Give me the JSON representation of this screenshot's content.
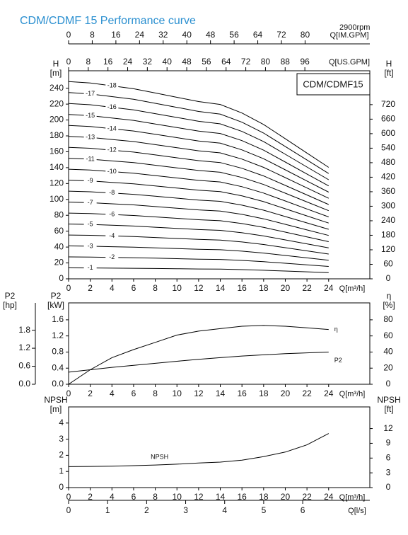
{
  "chart_data": [
    {
      "type": "line",
      "title": "CDM/CDMF 15 Performance curve",
      "subtitle": "2900rpm",
      "model": "CDM/CDMF15",
      "x": [
        0,
        2,
        4,
        6,
        8,
        10,
        12,
        14,
        16,
        18,
        20,
        22,
        24
      ],
      "xlim": [
        0,
        27.8
      ],
      "xticks": [
        0,
        2,
        4,
        6,
        8,
        10,
        12,
        14,
        16,
        18,
        20,
        22,
        24
      ],
      "xlabel": "Q[m³/h]",
      "ylabel": [
        "H",
        "[m]"
      ],
      "ylim": [
        0,
        262
      ],
      "yticks": [
        0,
        20,
        40,
        60,
        80,
        100,
        120,
        140,
        160,
        180,
        200,
        220,
        240
      ],
      "y2label": [
        "H",
        "[ft]"
      ],
      "y2lim": [
        0,
        860
      ],
      "y2ticks": [
        0,
        60,
        120,
        180,
        240,
        300,
        360,
        420,
        480,
        540,
        600,
        660,
        720
      ],
      "top_axes": [
        {
          "label": "Q[IM.GPM]",
          "lim": [
            0,
            101.9
          ],
          "ticks": [
            0,
            8,
            16,
            24,
            32,
            40,
            48,
            56,
            64,
            72,
            80
          ]
        },
        {
          "label": "Q[US.GPM]",
          "lim": [
            0,
            122.4
          ],
          "ticks": [
            0,
            8,
            16,
            24,
            32,
            40,
            48,
            56,
            64,
            72,
            80,
            88,
            96
          ]
        }
      ],
      "series": [
        {
          "name": "-1",
          "color": "#000",
          "values": [
            13.8,
            13.7,
            13.5,
            13.3,
            13.0,
            12.7,
            12.4,
            12.2,
            11.6,
            10.8,
            9.8,
            8.8,
            7.8
          ]
        },
        {
          "name": "-2",
          "color": "#000",
          "values": [
            27.6,
            27.4,
            27,
            26.6,
            26,
            25.4,
            24.8,
            24.4,
            23.2,
            21.6,
            19.6,
            17.6,
            15.6
          ]
        },
        {
          "name": "-3",
          "color": "#000",
          "values": [
            41.4,
            41.1,
            40.5,
            39.9,
            39,
            38.1,
            37.2,
            36.6,
            34.8,
            32.4,
            29.4,
            26.4,
            23.4
          ]
        },
        {
          "name": "-4",
          "color": "#000",
          "values": [
            55.2,
            54.8,
            54,
            53.2,
            52,
            50.8,
            49.6,
            48.8,
            46.4,
            43.2,
            39.2,
            35.2,
            31.2
          ]
        },
        {
          "name": "-5",
          "color": "#000",
          "values": [
            69,
            68.5,
            67.5,
            66.5,
            65,
            63.5,
            62,
            61,
            58,
            54,
            49,
            44,
            39
          ]
        },
        {
          "name": "-6",
          "color": "#000",
          "values": [
            82.8,
            82.2,
            81,
            79.8,
            78,
            76.2,
            74.4,
            73.2,
            69.6,
            64.8,
            58.8,
            52.8,
            46.8
          ]
        },
        {
          "name": "-7",
          "color": "#000",
          "values": [
            96.6,
            95.9,
            94.5,
            93.1,
            91,
            88.9,
            86.8,
            85.4,
            81.2,
            75.6,
            68.6,
            61.6,
            54.6
          ]
        },
        {
          "name": "-8",
          "color": "#000",
          "values": [
            110.4,
            109.6,
            108,
            106.4,
            104,
            101.6,
            99.2,
            97.6,
            92.8,
            86.4,
            78.4,
            70.4,
            62.4
          ]
        },
        {
          "name": "-9",
          "color": "#000",
          "values": [
            124.2,
            123.3,
            121.5,
            119.7,
            117,
            114.3,
            111.6,
            109.8,
            104.4,
            97.2,
            88.2,
            79.2,
            70.2
          ]
        },
        {
          "name": "-10",
          "color": "#000",
          "values": [
            138,
            137,
            135,
            133,
            130,
            127,
            124,
            122,
            116,
            108,
            98,
            88,
            78
          ]
        },
        {
          "name": "-11",
          "color": "#000",
          "values": [
            151.8,
            150.7,
            148.5,
            146.3,
            143,
            139.7,
            136.4,
            134.2,
            127.6,
            118.8,
            107.8,
            96.8,
            85.8
          ]
        },
        {
          "name": "-12",
          "color": "#000",
          "values": [
            165.6,
            164.4,
            162,
            159.6,
            156,
            152.4,
            148.8,
            146.4,
            139.2,
            129.6,
            117.6,
            105.6,
            93.6
          ]
        },
        {
          "name": "-13",
          "color": "#000",
          "values": [
            179.4,
            178.1,
            175.5,
            172.9,
            169,
            165.1,
            161.2,
            158.6,
            150.8,
            140.4,
            127.4,
            114.4,
            101.4
          ]
        },
        {
          "name": "-14",
          "color": "#000",
          "values": [
            193.2,
            191.8,
            189,
            186.2,
            182,
            177.8,
            173.6,
            170.8,
            162.4,
            151.2,
            137.2,
            123.2,
            109.2
          ]
        },
        {
          "name": "-15",
          "color": "#000",
          "values": [
            207,
            205.5,
            202.5,
            199.5,
            195,
            190.5,
            186,
            183,
            174,
            162,
            147,
            132,
            117
          ]
        },
        {
          "name": "-16",
          "color": "#000",
          "values": [
            220.8,
            219.2,
            216,
            212.8,
            208,
            203.2,
            198.4,
            195.2,
            185.6,
            172.8,
            156.8,
            140.8,
            124.8
          ]
        },
        {
          "name": "-17",
          "color": "#000",
          "values": [
            234.6,
            232.9,
            229.5,
            226.1,
            221,
            215.9,
            210.8,
            207.4,
            197.2,
            183.6,
            166.6,
            149.6,
            132.6
          ]
        },
        {
          "name": "-18",
          "color": "#000",
          "values": [
            248.4,
            246.6,
            243,
            239.4,
            234,
            228.6,
            223.2,
            219.6,
            208.8,
            194.4,
            176.4,
            158.4,
            140.4
          ]
        }
      ]
    },
    {
      "type": "line",
      "x": [
        0,
        2,
        4,
        6,
        8,
        10,
        12,
        14,
        16,
        18,
        20,
        22,
        24
      ],
      "xlim": [
        0,
        27.8
      ],
      "xticks": [
        0,
        2,
        4,
        6,
        8,
        10,
        12,
        14,
        16,
        18,
        20,
        22,
        24
      ],
      "xlabel": "Q[m³/h]",
      "ylabel": [
        "P2",
        "[kW]"
      ],
      "ylim": [
        0,
        2.02
      ],
      "yticks": [
        {
          "value": 0,
          "label": "0.0"
        },
        0.4,
        0.8,
        1.2,
        1.6
      ],
      "y2label": [
        "η",
        "[%]"
      ],
      "y2lim": [
        0,
        101
      ],
      "y2ticks": [
        0,
        20,
        40,
        60,
        80
      ],
      "y3label": [
        "P2",
        "[hp]"
      ],
      "y3lim": [
        0,
        2.71
      ],
      "y3ticks": [
        {
          "value": 0,
          "label": "0.0"
        },
        0.6,
        1.2,
        1.8
      ],
      "series": [
        {
          "name": "η",
          "color": "#000",
          "axis": "y2",
          "values": [
            0,
            18,
            33,
            43,
            52,
            61,
            66,
            69,
            72,
            73,
            72,
            70,
            68
          ]
        },
        {
          "name": "P2",
          "color": "#000",
          "values": [
            0.3,
            0.36,
            0.42,
            0.47,
            0.52,
            0.57,
            0.62,
            0.66,
            0.7,
            0.73,
            0.76,
            0.78,
            0.8
          ]
        }
      ]
    },
    {
      "type": "line",
      "x": [
        0,
        2,
        4,
        6,
        8,
        10,
        12,
        14,
        16,
        18,
        20,
        22,
        24
      ],
      "xlim": [
        0,
        27.8
      ],
      "xticks": [
        0,
        2,
        4,
        6,
        8,
        10,
        12,
        14,
        16,
        18,
        20,
        22,
        24
      ],
      "xlabel": "Q[m³/h]",
      "ylabel": [
        "NPSH",
        "[m]"
      ],
      "ylim": [
        0,
        5
      ],
      "yticks": [
        0,
        1,
        2,
        3,
        4
      ],
      "y2label": [
        "NPSH",
        "[ft]"
      ],
      "y2lim": [
        0,
        16.4
      ],
      "y2ticks": [
        0,
        3,
        6,
        9,
        12
      ],
      "bottom_axes": [
        {
          "label": "Q[l/s]",
          "lim": [
            0,
            7.72
          ],
          "ticks": [
            0,
            1,
            2,
            3,
            4,
            5,
            6
          ]
        }
      ],
      "series": [
        {
          "name": "NPSH",
          "color": "#000",
          "values": [
            1.3,
            1.31,
            1.33,
            1.36,
            1.4,
            1.45,
            1.52,
            1.58,
            1.7,
            1.92,
            2.2,
            2.65,
            3.35
          ]
        }
      ]
    }
  ]
}
